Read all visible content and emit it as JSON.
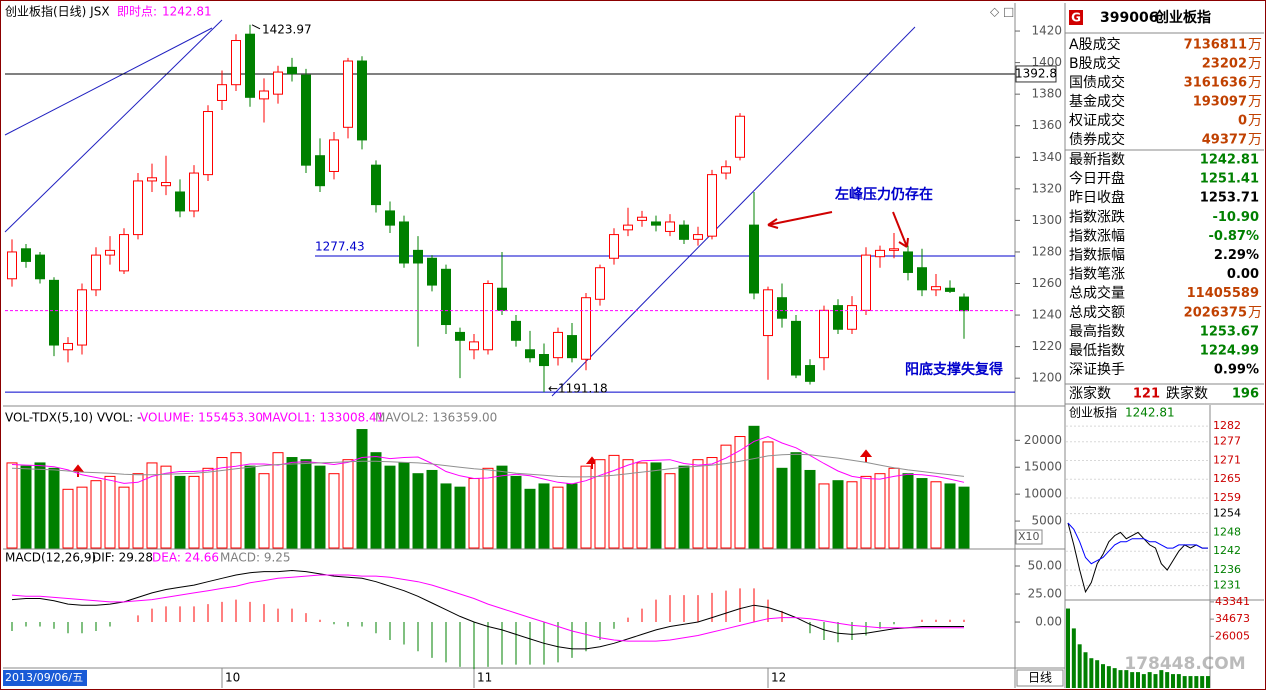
{
  "header": {
    "title": "创业板指(日线) JSX",
    "live_label": "即时点:",
    "live_value": 1242.81
  },
  "chart_data": [
    {
      "type": "candlestick",
      "categories": [
        "2013/09/06/五",
        null,
        null,
        null,
        null,
        null,
        null,
        null,
        null,
        null,
        null,
        null,
        null,
        null,
        null,
        "10",
        null,
        null,
        null,
        null,
        null,
        null,
        null,
        null,
        null,
        null,
        null,
        null,
        null,
        null,
        null,
        null,
        null,
        "11",
        null,
        null,
        null,
        null,
        null,
        null,
        null,
        null,
        null,
        null,
        null,
        null,
        null,
        null,
        null,
        null,
        null,
        null,
        null,
        null,
        "12",
        null,
        null,
        null,
        null,
        null,
        null,
        null,
        null,
        null,
        null,
        null,
        null,
        null,
        null
      ],
      "open": [
        1263,
        1282,
        1278,
        1262,
        1218,
        1221,
        1256,
        1278,
        1268,
        1291,
        1325,
        1322,
        1318,
        1306,
        1329,
        1376,
        1386,
        1418,
        1377,
        1380,
        1397,
        1392,
        1341,
        1331,
        1359,
        1401,
        1335,
        1306,
        1299,
        1281,
        1276,
        1269,
        1229,
        1218,
        1218,
        1257,
        1236,
        1218,
        1215,
        1213,
        1227,
        1212,
        1250,
        1276,
        1294,
        1300,
        1299,
        1293,
        1297,
        1288,
        1290,
        1330,
        1340,
        1297,
        1227,
        1251,
        1236,
        1208,
        1213,
        1246,
        1231,
        1243,
        1277,
        1281,
        1280,
        1270,
        1256,
        1257,
        1251.41
      ],
      "high": [
        1288,
        1285,
        1280,
        1264,
        1226,
        1260,
        1283,
        1290,
        1295,
        1330,
        1336,
        1341,
        1326,
        1335,
        1373,
        1395,
        1418,
        1423.97,
        1390,
        1398,
        1403,
        1396,
        1352,
        1356,
        1403,
        1404,
        1338,
        1312,
        1303,
        1290,
        1278,
        1272,
        1232,
        1228,
        1262,
        1280,
        1240,
        1230,
        1222,
        1232,
        1235,
        1254,
        1272,
        1295,
        1308,
        1306,
        1303,
        1304,
        1300,
        1296,
        1332,
        1338,
        1368,
        1318,
        1258,
        1260,
        1240,
        1212,
        1246,
        1250,
        1252,
        1283,
        1284,
        1292,
        1284,
        1282,
        1266,
        1262,
        1253.67
      ],
      "low": [
        1258,
        1270,
        1260,
        1214,
        1210,
        1215,
        1252,
        1272,
        1266,
        1288,
        1318,
        1316,
        1302,
        1302,
        1325,
        1370,
        1382,
        1372,
        1362,
        1374,
        1388,
        1330,
        1318,
        1326,
        1352,
        1345,
        1305,
        1292,
        1270,
        1220,
        1255,
        1228,
        1200,
        1212,
        1215,
        1240,
        1220,
        1210,
        1191.18,
        1208,
        1210,
        1205,
        1246,
        1272,
        1290,
        1296,
        1293,
        1290,
        1285,
        1284,
        1288,
        1326,
        1338,
        1250,
        1199,
        1232,
        1200,
        1196,
        1205,
        1228,
        1228,
        1240,
        1270,
        1276,
        1262,
        1252,
        1252,
        1254,
        1224.99
      ],
      "close": [
        1280,
        1274,
        1263,
        1221,
        1222,
        1256,
        1278,
        1281,
        1291,
        1325,
        1327,
        1324,
        1306,
        1330,
        1369,
        1386,
        1414,
        1378,
        1382,
        1394,
        1393,
        1335,
        1322,
        1351,
        1401,
        1351,
        1310,
        1297,
        1273,
        1273,
        1259,
        1234,
        1224,
        1223,
        1260,
        1243,
        1224,
        1213,
        1208,
        1229,
        1213,
        1251,
        1270,
        1291,
        1297,
        1302,
        1297,
        1299,
        1288,
        1291,
        1329,
        1334,
        1366,
        1254,
        1256,
        1238,
        1202,
        1198,
        1243,
        1231,
        1246,
        1278,
        1281,
        1282,
        1267,
        1256,
        1258,
        1255,
        1242.81
      ],
      "up_color": "#ff0000",
      "down_color": "#008000",
      "ylim": [
        1183,
        1427
      ],
      "yticks": [
        1200,
        1220,
        1240,
        1260,
        1280,
        1300,
        1320,
        1340,
        1360,
        1380,
        1400,
        1420
      ],
      "hlines": [
        {
          "value": 1392.8,
          "color": "#000000"
        },
        {
          "value": 1277.43,
          "color": "#0000cc"
        }
      ],
      "annotations": [
        "左峰压力仍存在",
        "阳底支撑失复得"
      ]
    },
    {
      "type": "bar",
      "indicator": "VOL-TDX(5,10) VVOL: -",
      "readouts": [
        {
          "text": "VOLUME: 155453.30",
          "color": "#ff00ff"
        },
        {
          "text": "MAVOL1: 133008.41",
          "color": "#ff00ff"
        },
        {
          "text": "MAVOL2: 136359.00",
          "color": "#808080"
        }
      ],
      "values": [
        15800,
        15200,
        15800,
        14800,
        10900,
        11300,
        12500,
        13300,
        11300,
        13800,
        15800,
        15200,
        13300,
        13300,
        14800,
        16800,
        17700,
        15200,
        13800,
        17700,
        16800,
        16400,
        15200,
        13800,
        16400,
        22000,
        17700,
        15200,
        15800,
        13800,
        14400,
        11900,
        11300,
        12900,
        14800,
        15200,
        13300,
        10900,
        11900,
        11300,
        11900,
        15200,
        16400,
        17200,
        16400,
        15800,
        15800,
        13800,
        15200,
        16400,
        16800,
        19100,
        20700,
        22600,
        19700,
        14800,
        17700,
        14400,
        11900,
        12500,
        12300,
        13300,
        13800,
        14800,
        13800,
        12900,
        12300,
        11900,
        11300
      ],
      "lines": [
        {
          "color": "#ff00ff",
          "values": [
            15500,
            15400,
            15300,
            15100,
            14500,
            13600,
            13100,
            12600,
            12000,
            12200,
            13300,
            13900,
            14200,
            14200,
            14400,
            14900,
            15200,
            15600,
            15600,
            15400,
            15900,
            16000,
            15800,
            15500,
            15900,
            16800,
            17000,
            16600,
            16800,
            16900,
            15700,
            14200,
            13400,
            12900,
            13000,
            13400,
            13700,
            13400,
            12800,
            12200,
            11900,
            12500,
            13500,
            14400,
            15400,
            16200,
            16300,
            16400,
            15700,
            15400,
            15600,
            16700,
            18100,
            19800,
            20700,
            19500,
            18600,
            17200,
            15700,
            14300,
            13300,
            12900,
            12800,
            13300,
            13700,
            13600,
            13300,
            12800,
            12200
          ]
        },
        {
          "color": "#909090",
          "values": [
            14800,
            14700,
            14600,
            14500,
            14300,
            14100,
            14000,
            13900,
            13700,
            13600,
            13600,
            13700,
            13800,
            13900,
            14100,
            14400,
            14700,
            15000,
            15300,
            15500,
            15600,
            15700,
            15800,
            15900,
            16000,
            16100,
            16100,
            16000,
            15900,
            15800,
            15600,
            15300,
            15000,
            14700,
            14500,
            14200,
            13900,
            13700,
            13500,
            13300,
            13200,
            13200,
            13300,
            13500,
            13800,
            14100,
            14400,
            14700,
            15000,
            15200,
            15400,
            15700,
            16100,
            16600,
            17100,
            17300,
            17400,
            17300,
            17000,
            16700,
            16300,
            15900,
            15400,
            14900,
            14500,
            14200,
            13900,
            13600,
            13300
          ]
        }
      ],
      "up_color": "#ff0000",
      "down_color": "#008000",
      "ylim": [
        0,
        26000
      ],
      "yticks": [
        5000,
        10000,
        15000,
        20000
      ],
      "unit": "X10"
    },
    {
      "type": "macd",
      "indicator": "MACD(12,26,9)",
      "readouts": [
        {
          "text": "DIF: 29.28",
          "color": "#000000"
        },
        {
          "text": "DEA: 24.66",
          "color": "#ff00ff"
        },
        {
          "text": "MACD: 9.25",
          "color": "#808080"
        }
      ],
      "values": [
        -8,
        -4,
        -4,
        -6,
        -10,
        -10,
        -8,
        -4,
        0,
        6,
        12,
        14,
        14,
        14,
        16,
        18,
        20,
        18,
        16,
        12,
        12,
        8,
        2,
        -2,
        -4,
        -4,
        -10,
        -16,
        -20,
        -26,
        -32,
        -36,
        -40,
        -42,
        -40,
        -38,
        -38,
        -38,
        -38,
        -36,
        -32,
        -26,
        -16,
        -6,
        4,
        12,
        20,
        24,
        24,
        24,
        26,
        28,
        30,
        30,
        20,
        10,
        0,
        -10,
        -16,
        -18,
        -16,
        -12,
        -6,
        -2,
        0,
        2,
        2,
        2,
        2
      ],
      "lines": [
        {
          "color": "#000000",
          "values": [
            20,
            21,
            21,
            19,
            16,
            15,
            15,
            16,
            18,
            22,
            26,
            29,
            31,
            33,
            36,
            39,
            42,
            44,
            45,
            45,
            46,
            45,
            43,
            41,
            40,
            39,
            36,
            32,
            28,
            23,
            17,
            11,
            5,
            0,
            -4,
            -7,
            -11,
            -15,
            -19,
            -22,
            -24,
            -24,
            -22,
            -19,
            -15,
            -11,
            -7,
            -4,
            -2,
            0,
            4,
            8,
            12,
            15,
            13,
            9,
            4,
            -2,
            -7,
            -10,
            -11,
            -10,
            -8,
            -6,
            -5,
            -4,
            -4,
            -4,
            -4
          ]
        },
        {
          "color": "#ff00ff",
          "values": [
            24,
            23,
            23,
            22,
            21,
            20,
            19,
            18,
            18,
            19,
            20,
            22,
            24,
            26,
            28,
            30,
            32,
            35,
            37,
            39,
            40,
            41,
            42,
            42,
            42,
            41,
            41,
            40,
            38,
            36,
            33,
            29,
            25,
            21,
            16,
            12,
            8,
            4,
            0,
            -4,
            -8,
            -11,
            -14,
            -16,
            -17,
            -17,
            -17,
            -16,
            -14,
            -12,
            -9,
            -6,
            -3,
            0,
            3,
            4,
            4,
            3,
            1,
            -1,
            -3,
            -4,
            -5,
            -5,
            -5,
            -5,
            -5,
            -5,
            -5
          ]
        }
      ],
      "up_color": "#ff0000",
      "down_color": "#008000",
      "ylim": [
        -41,
        62.5
      ],
      "yticks": [
        {
          "value": 0,
          "label": "0.00"
        },
        {
          "value": 25,
          "label": "25.00"
        },
        {
          "value": 50,
          "label": "50.00"
        }
      ]
    },
    {
      "type": "line",
      "title": "创业板指",
      "last": 1242.81,
      "series": [
        {
          "color": "#000000",
          "values": [
            1251,
            1244,
            1236,
            1229,
            1232,
            1238,
            1241,
            1245,
            1247,
            1248,
            1246,
            1247,
            1248,
            1246,
            1244,
            1243,
            1238,
            1236,
            1239,
            1242,
            1244,
            1243,
            1244,
            1243,
            1243
          ]
        },
        {
          "color": "#0000ff",
          "values": [
            1251,
            1249,
            1245,
            1240,
            1238,
            1239,
            1240,
            1242,
            1244,
            1245,
            1245,
            1246,
            1246,
            1246,
            1245,
            1245,
            1244,
            1243,
            1243,
            1244,
            1244,
            1244,
            1244,
            1243,
            1243
          ]
        }
      ],
      "ylim": [
        1226.4,
        1283.3
      ],
      "yticks": [
        1282,
        1277,
        1271,
        1265,
        1259,
        1254,
        1248,
        1242,
        1236,
        1231
      ],
      "tick_colors": [
        "#cc0000",
        "#cc0000",
        "#cc0000",
        "#cc0000",
        "#cc0000",
        "#000000",
        "#008000",
        "#008000",
        "#008000",
        "#008000"
      ]
    },
    {
      "type": "bar",
      "values": [
        40000,
        30000,
        22000,
        18000,
        15000,
        14000,
        12000,
        11000,
        10000,
        9000,
        9000,
        8000,
        8000,
        7000,
        8000,
        7000,
        9000,
        8000,
        7000,
        7000,
        6000,
        6000,
        6000,
        6000,
        6000
      ],
      "color": "#008000",
      "ylim": [
        0,
        44300
      ],
      "yticks": [
        26005,
        34673,
        43341
      ],
      "tick_color": "#cc0000"
    }
  ],
  "quote": {
    "badge": "G",
    "code": "399006",
    "name": "创业板指",
    "rows": [
      {
        "label": "A股成交",
        "value": "7136811",
        "unit": "万",
        "color": "#c04000"
      },
      {
        "label": "B股成交",
        "value": "23202",
        "unit": "万",
        "color": "#c04000"
      },
      {
        "label": "国债成交",
        "value": "3161636",
        "unit": "万",
        "color": "#c04000"
      },
      {
        "label": "基金成交",
        "value": "193097",
        "unit": "万",
        "color": "#c04000"
      },
      {
        "label": "权证成交",
        "value": "0",
        "unit": "万",
        "color": "#c04000"
      },
      {
        "label": "债券成交",
        "value": "49377",
        "unit": "万",
        "color": "#c04000"
      },
      {
        "label": "最新指数",
        "value": "1242.81",
        "color": "#008000"
      },
      {
        "label": "今日开盘",
        "value": "1251.41",
        "color": "#008000"
      },
      {
        "label": "昨日收盘",
        "value": "1253.71",
        "color": "#000000"
      },
      {
        "label": "指数涨跌",
        "value": "-10.90",
        "color": "#008000"
      },
      {
        "label": "指数涨幅",
        "value": "-0.87%",
        "color": "#008000"
      },
      {
        "label": "指数振幅",
        "value": "2.29%",
        "color": "#000000"
      },
      {
        "label": "指数笔涨",
        "value": "0.00",
        "color": "#000000"
      },
      {
        "label": "总成交量",
        "value": "11405589",
        "color": "#c04000"
      },
      {
        "label": "总成交额",
        "value": "2026375",
        "unit": "万",
        "color": "#c04000"
      },
      {
        "label": "最高指数",
        "value": "1253.67",
        "color": "#008000"
      },
      {
        "label": "最低指数",
        "value": "1224.99",
        "color": "#008000"
      },
      {
        "label": "深证换手",
        "value": "0.99%",
        "color": "#000000"
      }
    ],
    "breadth": {
      "up_label": "涨家数",
      "up": 121,
      "down_label": "跌家数",
      "down": 196
    }
  },
  "footer": {
    "period": "日线",
    "watermark": "178448.COM"
  }
}
